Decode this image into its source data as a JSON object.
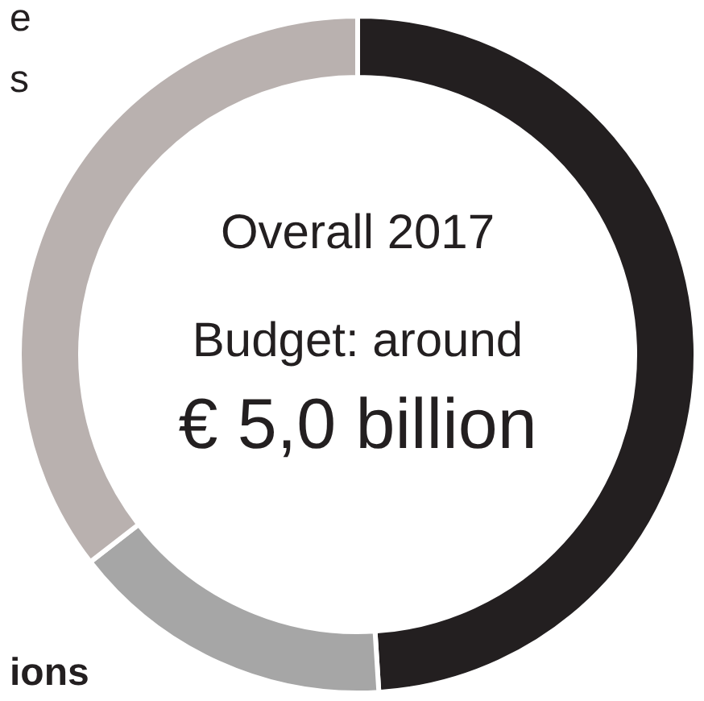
{
  "chart_data": {
    "type": "donut",
    "categories": [
      null,
      null,
      null
    ],
    "values": [
      49,
      15.5,
      35.5
    ],
    "colors": [
      "#231f20",
      "#a6a6a6",
      "#b9b1af"
    ],
    "annotations": [
      "Overall 2017",
      "Budget: around",
      "€ 5,0 billion",
      "e",
      "s",
      "ions"
    ]
  }
}
